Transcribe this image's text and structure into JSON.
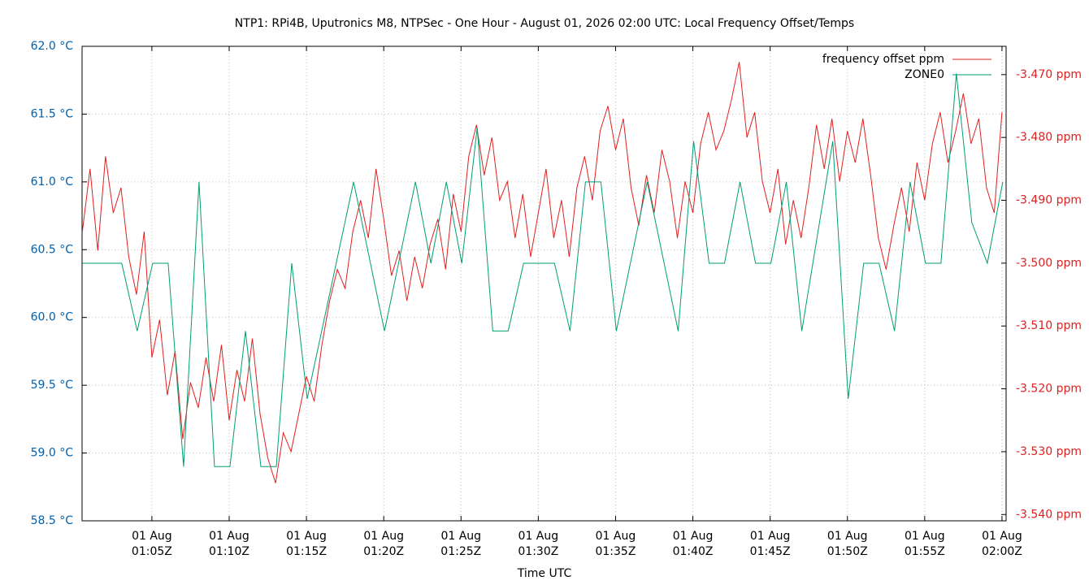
{
  "chart_data": {
    "type": "line",
    "title": "NTP1: RPi4B, Uputronics M8, NTPSec - One Hour - August 01, 2026 02:00 UTC: Local Frequency Offset/Temps",
    "xlabel": "Time UTC",
    "xlim": [
      "01:00:29",
      "02:00:16"
    ],
    "xticks": [
      {
        "value": "01:05:00",
        "label": "01 Aug\n01:05Z"
      },
      {
        "value": "01:10:00",
        "label": "01 Aug\n01:10Z"
      },
      {
        "value": "01:15:00",
        "label": "01 Aug\n01:15Z"
      },
      {
        "value": "01:20:00",
        "label": "01 Aug\n01:20Z"
      },
      {
        "value": "01:25:00",
        "label": "01 Aug\n01:25Z"
      },
      {
        "value": "01:30:00",
        "label": "01 Aug\n01:30Z"
      },
      {
        "value": "01:35:00",
        "label": "01 Aug\n01:35Z"
      },
      {
        "value": "01:40:00",
        "label": "01 Aug\n01:40Z"
      },
      {
        "value": "01:45:00",
        "label": "01 Aug\n01:45Z"
      },
      {
        "value": "01:50:00",
        "label": "01 Aug\n01:50Z"
      },
      {
        "value": "01:55:00",
        "label": "01 Aug\n01:55Z"
      },
      {
        "value": "02:00:00",
        "label": "01 Aug\n02:00Z"
      }
    ],
    "ylim": [
      58.5,
      62.0
    ],
    "yticks": [
      {
        "value": 58.5,
        "label": "58.5 °C"
      },
      {
        "value": 59.0,
        "label": "59.0 °C"
      },
      {
        "value": 59.5,
        "label": "59.5 °C"
      },
      {
        "value": 60.0,
        "label": "60.0 °C"
      },
      {
        "value": 60.5,
        "label": "60.5 °C"
      },
      {
        "value": 61.0,
        "label": "61.0 °C"
      },
      {
        "value": 61.5,
        "label": "61.5 °C"
      },
      {
        "value": 62.0,
        "label": "62.0 °C"
      }
    ],
    "y2lim": [
      -3.541,
      -3.4655
    ],
    "y2ticks": [
      {
        "value": -3.54,
        "label": "-3.540 ppm"
      },
      {
        "value": -3.53,
        "label": "-3.530 ppm"
      },
      {
        "value": -3.52,
        "label": "-3.520 ppm"
      },
      {
        "value": -3.51,
        "label": "-3.510 ppm"
      },
      {
        "value": -3.5,
        "label": "-3.500 ppm"
      },
      {
        "value": -3.49,
        "label": "-3.490 ppm"
      },
      {
        "value": -3.48,
        "label": "-3.480 ppm"
      },
      {
        "value": -3.47,
        "label": "-3.470 ppm"
      }
    ],
    "grid": true,
    "legend": "top-right",
    "y_color": "#0060ad",
    "y2_color": "#e0201f",
    "series": [
      {
        "name": "frequency offset ppm",
        "color": "#e0201f",
        "axis": "y2",
        "x": [
          "01:00:30",
          "01:01:00",
          "01:01:30",
          "01:02:00",
          "01:02:30",
          "01:03:00",
          "01:03:30",
          "01:04:00",
          "01:04:30",
          "01:05:00",
          "01:05:30",
          "01:06:00",
          "01:06:30",
          "01:07:00",
          "01:07:30",
          "01:08:00",
          "01:08:30",
          "01:09:00",
          "01:09:30",
          "01:10:00",
          "01:10:30",
          "01:11:00",
          "01:11:30",
          "01:12:00",
          "01:12:30",
          "01:13:00",
          "01:13:30",
          "01:14:00",
          "01:14:30",
          "01:15:00",
          "01:15:30",
          "01:16:00",
          "01:16:30",
          "01:17:00",
          "01:17:30",
          "01:18:00",
          "01:18:30",
          "01:19:00",
          "01:19:30",
          "01:20:00",
          "01:20:30",
          "01:21:00",
          "01:21:30",
          "01:22:00",
          "01:22:30",
          "01:23:00",
          "01:23:30",
          "01:24:00",
          "01:24:30",
          "01:25:00",
          "01:25:30",
          "01:26:00",
          "01:26:30",
          "01:27:00",
          "01:27:30",
          "01:28:00",
          "01:28:30",
          "01:29:00",
          "01:29:30",
          "01:30:00",
          "01:30:30",
          "01:31:00",
          "01:31:30",
          "01:32:00",
          "01:32:30",
          "01:33:00",
          "01:33:30",
          "01:34:00",
          "01:34:30",
          "01:35:00",
          "01:35:30",
          "01:36:00",
          "01:36:30",
          "01:37:00",
          "01:37:30",
          "01:38:00",
          "01:38:30",
          "01:39:00",
          "01:39:30",
          "01:40:00",
          "01:40:30",
          "01:41:00",
          "01:41:30",
          "01:42:00",
          "01:42:30",
          "01:43:00",
          "01:43:30",
          "01:44:00",
          "01:44:30",
          "01:45:00",
          "01:45:30",
          "01:46:00",
          "01:46:30",
          "01:47:00",
          "01:47:30",
          "01:48:00",
          "01:48:30",
          "01:49:00",
          "01:49:30",
          "01:50:00",
          "01:50:30",
          "01:51:00",
          "01:51:30",
          "01:52:00",
          "01:52:30",
          "01:53:00",
          "01:53:30",
          "01:54:00",
          "01:54:30",
          "01:55:00",
          "01:55:30",
          "01:56:00",
          "01:56:30",
          "01:57:00",
          "01:57:30",
          "01:58:00",
          "01:58:30",
          "01:59:00",
          "01:59:30",
          "02:00:00"
        ],
        "values": [
          -3.495,
          -3.485,
          -3.498,
          -3.483,
          -3.492,
          -3.488,
          -3.499,
          -3.505,
          -3.495,
          -3.515,
          -3.509,
          -3.521,
          -3.514,
          -3.528,
          -3.519,
          -3.523,
          -3.515,
          -3.522,
          -3.513,
          -3.525,
          -3.517,
          -3.522,
          -3.512,
          -3.524,
          -3.531,
          -3.535,
          -3.527,
          -3.53,
          -3.524,
          -3.518,
          -3.522,
          -3.513,
          -3.506,
          -3.501,
          -3.504,
          -3.495,
          -3.49,
          -3.496,
          -3.485,
          -3.493,
          -3.502,
          -3.498,
          -3.506,
          -3.499,
          -3.504,
          -3.497,
          -3.493,
          -3.501,
          -3.489,
          -3.495,
          -3.483,
          -3.478,
          -3.486,
          -3.48,
          -3.49,
          -3.487,
          -3.496,
          -3.489,
          -3.499,
          -3.492,
          -3.485,
          -3.496,
          -3.49,
          -3.499,
          -3.488,
          -3.483,
          -3.49,
          -3.479,
          -3.475,
          -3.482,
          -3.477,
          -3.488,
          -3.494,
          -3.486,
          -3.492,
          -3.482,
          -3.487,
          -3.496,
          -3.487,
          -3.492,
          -3.481,
          -3.476,
          -3.482,
          -3.479,
          -3.474,
          -3.468,
          -3.48,
          -3.476,
          -3.487,
          -3.492,
          -3.485,
          -3.497,
          -3.49,
          -3.496,
          -3.488,
          -3.478,
          -3.485,
          -3.477,
          -3.487,
          -3.479,
          -3.484,
          -3.477,
          -3.486,
          -3.496,
          -3.501,
          -3.494,
          -3.488,
          -3.495,
          -3.484,
          -3.49,
          -3.481,
          -3.476,
          -3.484,
          -3.479,
          -3.473,
          -3.481,
          -3.477,
          -3.488,
          -3.492,
          -3.476
        ]
      },
      {
        "name": "ZONE0",
        "color": "#009e73",
        "x": [
          "01:00:30",
          "01:03:03",
          "01:04:03",
          "01:05:03",
          "01:06:03",
          "01:07:03",
          "01:08:03",
          "01:09:03",
          "01:10:03",
          "01:11:03",
          "01:12:03",
          "01:13:03",
          "01:14:03",
          "01:15:03",
          "01:18:03",
          "01:20:03",
          "01:22:03",
          "01:23:03",
          "01:24:03",
          "01:25:03",
          "01:26:03",
          "01:27:03",
          "01:28:03",
          "01:29:03",
          "01:31:03",
          "01:32:03",
          "01:33:03",
          "01:34:03",
          "01:35:03",
          "01:37:03",
          "01:39:03",
          "01:40:03",
          "01:41:03",
          "01:42:03",
          "01:43:03",
          "01:44:03",
          "01:45:03",
          "01:46:03",
          "01:47:03",
          "01:49:03",
          "01:50:03",
          "01:51:03",
          "01:52:03",
          "01:53:03",
          "01:54:03",
          "01:55:03",
          "01:56:03",
          "01:57:03",
          "01:58:03",
          "01:59:03",
          "02:00:03"
        ],
        "values": [
          60.4,
          60.4,
          59.9,
          60.4,
          60.4,
          58.9,
          61.0,
          58.9,
          58.9,
          59.9,
          58.9,
          58.9,
          60.4,
          59.4,
          61.0,
          59.9,
          61.0,
          60.4,
          61.0,
          60.4,
          61.4,
          59.9,
          59.9,
          60.4,
          60.4,
          59.9,
          61.0,
          61.0,
          59.9,
          61.0,
          59.9,
          61.3,
          60.4,
          60.4,
          61.0,
          60.4,
          60.4,
          61.0,
          59.9,
          61.3,
          59.4,
          60.4,
          60.4,
          59.9,
          61.0,
          60.4,
          60.4,
          61.8,
          60.7,
          60.4,
          61.0
        ]
      }
    ]
  }
}
